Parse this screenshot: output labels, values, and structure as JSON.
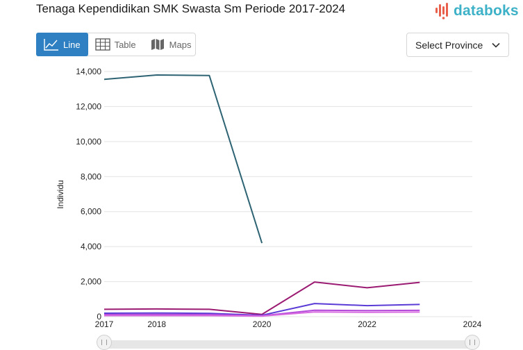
{
  "header": {
    "title": "Tenaga Kependidikan SMK Swasta Sm Periode 2017-2024",
    "brand": "databoks"
  },
  "tabs": [
    {
      "label": "Line",
      "icon": "line-chart-icon",
      "active": true
    },
    {
      "label": "Table",
      "icon": "table-icon",
      "active": false
    },
    {
      "label": "Maps",
      "icon": "map-icon",
      "active": false
    }
  ],
  "province_select": {
    "label": "Select Province",
    "icon": "chevron-down-icon"
  },
  "colors": {
    "accent": "#2f80c2",
    "brand": "#3db1c7",
    "brand_mark": "#e8604c"
  },
  "chart_data": {
    "type": "line",
    "title": "Tenaga Kependidikan SMK Swasta Sm Periode 2017-2024",
    "xlabel": "",
    "ylabel": "Individu",
    "x": [
      2017,
      2018,
      2019,
      2020,
      2021,
      2022,
      2023
    ],
    "x_ticks": [
      2017,
      2018,
      2020,
      2022,
      2024
    ],
    "xlim": [
      2017,
      2024
    ],
    "ylim": [
      0,
      14000
    ],
    "y_ticks": [
      0,
      2000,
      4000,
      6000,
      8000,
      10000,
      12000,
      14000
    ],
    "grid": true,
    "series": [
      {
        "color": "#2d6373",
        "values": [
          13550,
          13800,
          13770,
          4200,
          null,
          null,
          null
        ]
      },
      {
        "color": "#9b1a72",
        "values": [
          420,
          440,
          420,
          130,
          1980,
          1650,
          1960
        ]
      },
      {
        "color": "#5b3bd6",
        "values": [
          200,
          210,
          190,
          80,
          750,
          630,
          700
        ]
      },
      {
        "color": "#b44ad9",
        "values": [
          120,
          130,
          120,
          50,
          370,
          350,
          360
        ]
      },
      {
        "color": "#d86be0",
        "values": [
          60,
          60,
          60,
          30,
          270,
          250,
          260
        ]
      }
    ]
  }
}
